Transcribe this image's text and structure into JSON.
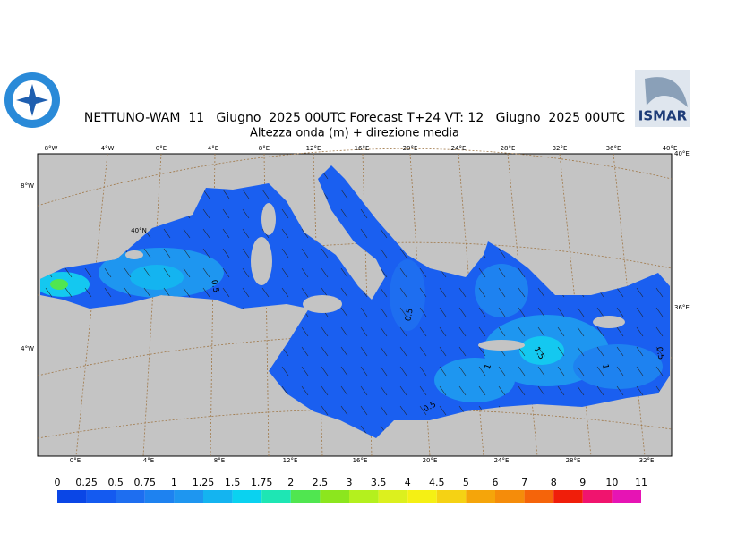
{
  "header": {
    "title": "NETTUNO-WAM  11   Giugno  2025 00UTC Forecast T+24 VT: 12   Giugno  2025 00UTC",
    "subtitle": "Altezza onda (m) + direzione media",
    "logo_text": "ISMAR"
  },
  "map": {
    "lon_labels_top": [
      "8°W",
      "4°W",
      "0°E",
      "4°E",
      "8°E",
      "12°E",
      "16°E",
      "20°E",
      "24°E",
      "28°E",
      "32°E",
      "36°E",
      "40°E"
    ],
    "lon_labels_bottom": [
      "0°E",
      "4°E",
      "8°E",
      "12°E",
      "16°E",
      "20°E",
      "24°E",
      "28°E",
      "32°E"
    ],
    "lat_labels_left": [
      "8°W",
      "4°W"
    ],
    "lat_labels_right": [
      "40°E",
      "36°E"
    ],
    "graticule_label": "40°N",
    "contour_labels": [
      0.5,
      0.5,
      1.5,
      1,
      1,
      0.5,
      0.5
    ]
  },
  "legend": {
    "levels": [
      0,
      0.25,
      0.5,
      0.75,
      1,
      1.25,
      1.5,
      1.75,
      2,
      2.5,
      3,
      3.5,
      4,
      4.5,
      5,
      6,
      7,
      8,
      9,
      10,
      11
    ],
    "colors": [
      "#0a46e6",
      "#145af0",
      "#1e6ef0",
      "#1e82f0",
      "#1e96f0",
      "#14b4f0",
      "#0ad2f0",
      "#1ee6b4",
      "#50e650",
      "#8ce61e",
      "#b4f01e",
      "#dcf01e",
      "#f5f014",
      "#f5d214",
      "#f5a50a",
      "#f58c0a",
      "#f5640a",
      "#f01e0a",
      "#f0146e",
      "#e614b4"
    ]
  }
}
